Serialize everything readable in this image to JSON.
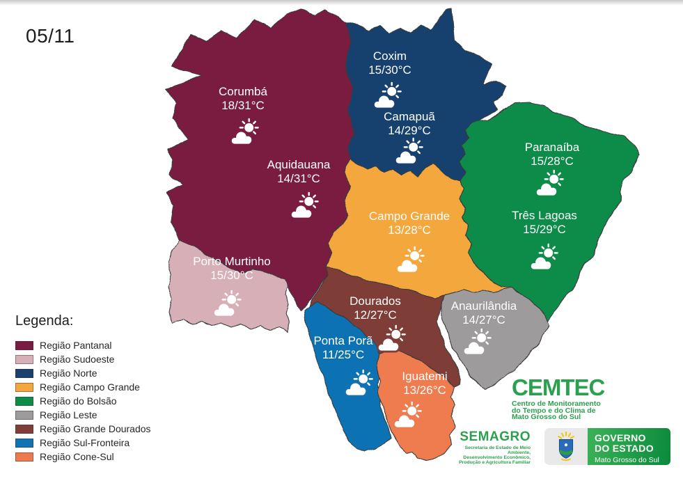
{
  "date": "05/11",
  "legend": {
    "title": "Legenda:",
    "items": [
      {
        "key": "pantanal",
        "label": "Região Pantanal",
        "color": "#7a1b41"
      },
      {
        "key": "sudoeste",
        "label": "Região Sudoeste",
        "color": "#d7b0b7"
      },
      {
        "key": "norte",
        "label": "Região Norte",
        "color": "#19406e"
      },
      {
        "key": "campo_grande",
        "label": "Região Campo Grande",
        "color": "#f3a73d"
      },
      {
        "key": "bolsao",
        "label": "Região do Bolsão",
        "color": "#0f8b48"
      },
      {
        "key": "leste",
        "label": "Região Leste",
        "color": "#9d9b9c"
      },
      {
        "key": "grande_dourados",
        "label": "Região Grande Dourados",
        "color": "#7f3e39"
      },
      {
        "key": "sul_fronteira",
        "label": "Região Sul-Fronteira",
        "color": "#1172b4"
      },
      {
        "key": "cone_sul",
        "label": "Região Cone-Sul",
        "color": "#ee7b50"
      }
    ]
  },
  "map": {
    "cities": [
      {
        "key": "corumba",
        "name": "Corumbá",
        "temp": "18/31°C",
        "region": "pantanal",
        "icon": "sun-cloud-icon"
      },
      {
        "key": "aquidauana",
        "name": "Aquidauana",
        "temp": "14/31°C",
        "region": "pantanal",
        "icon": "sun-cloud-icon"
      },
      {
        "key": "coxim",
        "name": "Coxim",
        "temp": "15/30°C",
        "region": "norte",
        "icon": "sun-cloud-icon"
      },
      {
        "key": "camapua",
        "name": "Camapuã",
        "temp": "14/29°C",
        "region": "norte",
        "icon": "sun-cloud-icon"
      },
      {
        "key": "paranaiba",
        "name": "Paranaíba",
        "temp": "15/28°C",
        "region": "bolsao",
        "icon": "sun-cloud-icon"
      },
      {
        "key": "tres_lagoas",
        "name": "Três Lagoas",
        "temp": "15/29°C",
        "region": "bolsao",
        "icon": "sun-cloud-icon"
      },
      {
        "key": "campo_grande",
        "name": "Campo Grande",
        "temp": "13/28°C",
        "region": "campo_grande",
        "icon": "sun-cloud-icon"
      },
      {
        "key": "porto_murtinho",
        "name": "Porto Murtinho",
        "temp": "15/30°C",
        "region": "sudoeste",
        "icon": "sun-cloud-icon"
      },
      {
        "key": "dourados",
        "name": "Dourados",
        "temp": "12/27°C",
        "region": "grande_dourados",
        "icon": "sun-cloud-icon"
      },
      {
        "key": "anaurilandia",
        "name": "Anaurilândia",
        "temp": "14/27°C",
        "region": "leste",
        "icon": "sun-cloud-icon"
      },
      {
        "key": "ponta_pora",
        "name": "Ponta Porã",
        "temp": "11/25°C",
        "region": "sul_fronteira",
        "icon": "sun-cloud-icon"
      },
      {
        "key": "iguatemi",
        "name": "Iguatemi",
        "temp": "13/26°C",
        "region": "cone_sul",
        "icon": "sun-cloud-icon"
      }
    ]
  },
  "logos": {
    "cemtec": {
      "name": "CEMTEC",
      "line1": "Centro de Monitoramento",
      "line2": "do Tempo e do Clima de",
      "line3": "Mato Grosso do Sul",
      "color": "#2ca04e"
    },
    "semagro": {
      "name": "SEMAGRO",
      "line1": "Secretaria de Estado de Meio Ambiente,",
      "line2": "Desenvolvimento Econômico,",
      "line3": "Produção e Agricultura Familiar",
      "color": "#2ca04e"
    },
    "governo": {
      "line1": "GOVERNO",
      "line2": "DO ESTADO",
      "line3": "Mato Grosso do Sul",
      "green": "#0b8a3c"
    }
  }
}
